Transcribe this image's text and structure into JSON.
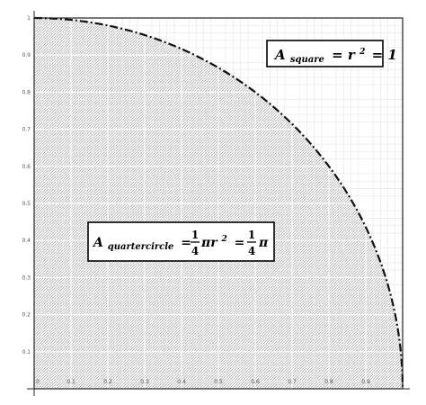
{
  "chart_data": {
    "type": "area",
    "xlim": [
      0,
      1
    ],
    "ylim": [
      0,
      1
    ],
    "grid": true,
    "x_ticks": [
      "0",
      "0.1",
      "0.2",
      "0.3",
      "0.4",
      "0.5",
      "0.6",
      "0.7",
      "0.8",
      "0.9"
    ],
    "y_ticks": [
      "0.1",
      "0.2",
      "0.3",
      "0.4",
      "0.5",
      "0.6",
      "0.7",
      "0.8",
      "0.9",
      "1"
    ],
    "curve": "y = sqrt(1 - x^2)",
    "curve_style": "dashed",
    "fill": "hatched",
    "annotations": {
      "square": {
        "A": "A",
        "sub": "square",
        "rhs_left": "= r",
        "exp": "2",
        "rhs_right": "= 1"
      },
      "quarter": {
        "A": "A",
        "sub": "quartercircle",
        "eq": "=",
        "frac1_num": "1",
        "frac1_den": "4",
        "pi_r": "πr",
        "exp": "2",
        "eq2": "=",
        "frac2_num": "1",
        "frac2_den": "4",
        "pi": "π"
      }
    }
  }
}
